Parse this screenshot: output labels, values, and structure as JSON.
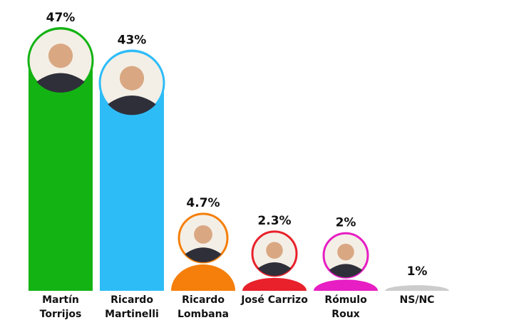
{
  "chart_data": {
    "type": "bar",
    "categories": [
      "Martín Torrijos",
      "Ricardo Martinelli",
      "Ricardo Lombana",
      "José Carrizo",
      "Rómulo Roux",
      "NS/NC"
    ],
    "values": [
      47,
      43,
      4.7,
      2.3,
      2,
      1
    ],
    "value_labels": [
      "47%",
      "43%",
      "4.7%",
      "2.3%",
      "2%",
      "1%"
    ],
    "colors": [
      "#13b313",
      "#2ebcf7",
      "#f57f0a",
      "#e8212b",
      "#e61ec3",
      "#cccccc"
    ]
  }
}
